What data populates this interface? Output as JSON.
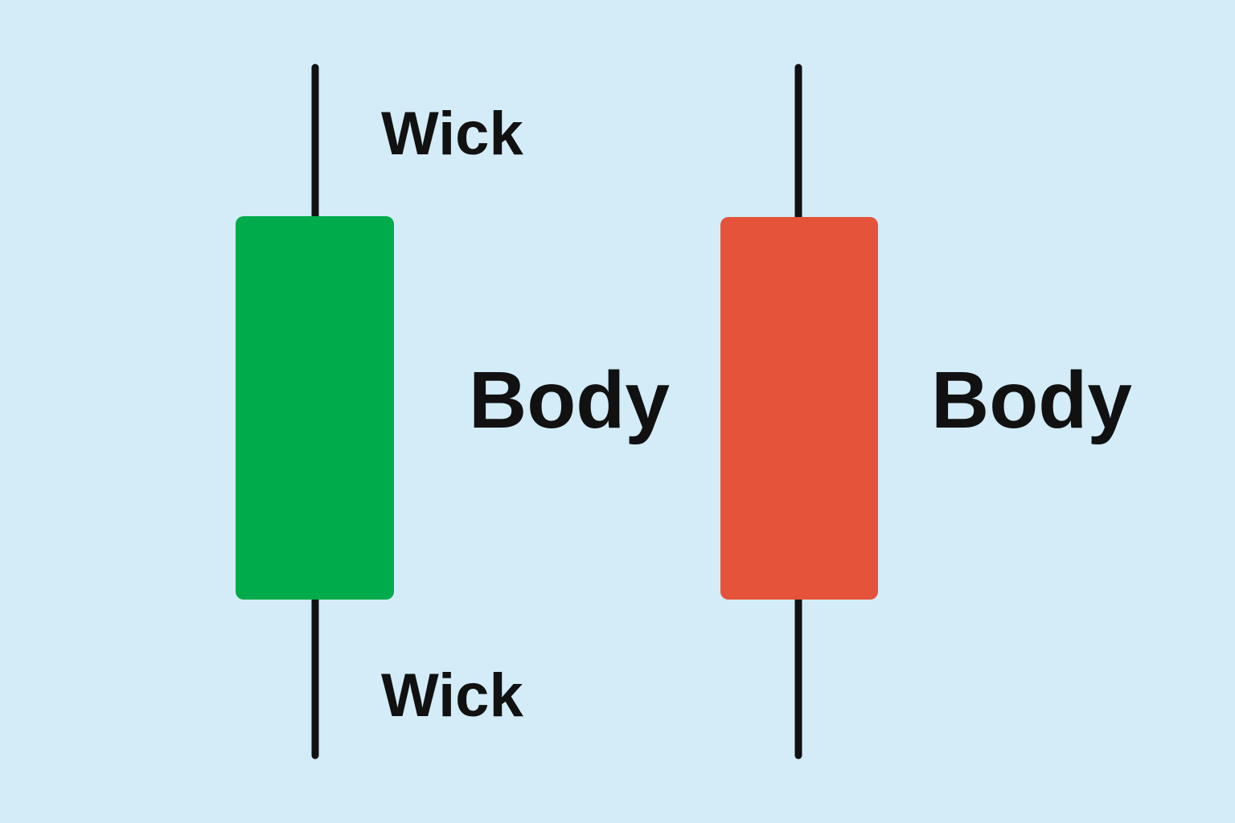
{
  "background_color": "#d3ecf7",
  "candles": [
    {
      "name": "bullish-candle",
      "body_color": "#00ab4b",
      "wick_color": "#111111"
    },
    {
      "name": "bearish-candle",
      "body_color": "#e5533b",
      "wick_color": "#111111"
    }
  ],
  "labels": {
    "upper_wick": "Wick",
    "lower_wick": "Wick",
    "green_body": "Body",
    "red_body": "Body"
  }
}
